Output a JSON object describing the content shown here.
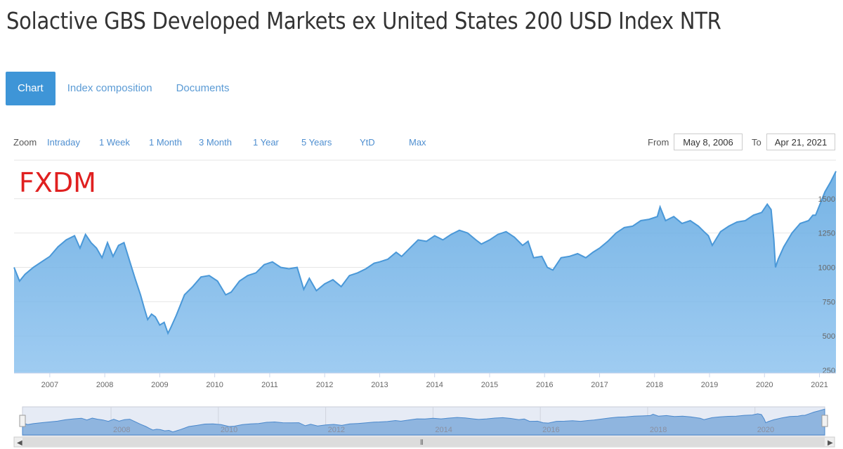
{
  "page": {
    "title": "Solactive GBS Developed Markets ex United States 200 USD Index NTR",
    "tabs": [
      {
        "label": "Chart",
        "active": true
      },
      {
        "label": "Index composition",
        "active": false
      },
      {
        "label": "Documents",
        "active": false
      }
    ],
    "zoom": {
      "label": "Zoom",
      "buttons": [
        "Intraday",
        "1 Week",
        "1 Month",
        "3 Month",
        "1 Year",
        "5 Years",
        "YtD",
        "Max"
      ]
    },
    "range": {
      "from_label": "From",
      "from_value": "May 8, 2006",
      "to_label": "To",
      "to_value": "Apr 21, 2021"
    },
    "watermark": "FXDM",
    "colors": {
      "accent": "#3e95d7",
      "line": "#4a98d8",
      "watermark": "#e02020"
    }
  },
  "chart_data": {
    "type": "area",
    "title": "",
    "xlabel": "",
    "ylabel": "",
    "xlim": [
      2006.35,
      2021.3
    ],
    "ylim": [
      230,
      1770
    ],
    "yticks": [
      250,
      500,
      750,
      1000,
      1250,
      1500
    ],
    "xticks": [
      2007,
      2008,
      2009,
      2010,
      2011,
      2012,
      2013,
      2014,
      2015,
      2016,
      2017,
      2018,
      2019,
      2020,
      2021
    ],
    "series": [
      {
        "x": [
          2006.35,
          2006.45,
          2006.55,
          2006.7,
          2006.85,
          2007.0,
          2007.15,
          2007.3,
          2007.45,
          2007.55,
          2007.65,
          2007.75,
          2007.85,
          2007.95,
          2008.05,
          2008.15,
          2008.25,
          2008.35,
          2008.45,
          2008.55,
          2008.65,
          2008.72,
          2008.78,
          2008.85,
          2008.92,
          2009.0,
          2009.08,
          2009.15,
          2009.2,
          2009.3,
          2009.45,
          2009.6,
          2009.75,
          2009.9,
          2010.05,
          2010.2,
          2010.3,
          2010.45,
          2010.6,
          2010.75,
          2010.9,
          2011.05,
          2011.2,
          2011.35,
          2011.5,
          2011.62,
          2011.72,
          2011.85,
          2012.0,
          2012.15,
          2012.3,
          2012.45,
          2012.6,
          2012.75,
          2012.9,
          2013.0,
          2013.15,
          2013.3,
          2013.4,
          2013.55,
          2013.7,
          2013.85,
          2014.0,
          2014.15,
          2014.3,
          2014.45,
          2014.6,
          2014.75,
          2014.85,
          2015.0,
          2015.15,
          2015.3,
          2015.45,
          2015.6,
          2015.7,
          2015.8,
          2015.95,
          2016.05,
          2016.15,
          2016.3,
          2016.45,
          2016.6,
          2016.75,
          2016.88,
          2017.0,
          2017.15,
          2017.3,
          2017.45,
          2017.6,
          2017.75,
          2017.9,
          2018.05,
          2018.1,
          2018.2,
          2018.35,
          2018.5,
          2018.65,
          2018.8,
          2018.9,
          2018.98,
          2019.05,
          2019.2,
          2019.35,
          2019.5,
          2019.65,
          2019.8,
          2019.95,
          2020.05,
          2020.12,
          2020.17,
          2020.2,
          2020.25,
          2020.35,
          2020.5,
          2020.65,
          2020.8,
          2020.88,
          2020.93,
          2021.0,
          2021.1,
          2021.2,
          2021.3
        ],
        "y": [
          1000,
          900,
          950,
          1000,
          1040,
          1080,
          1150,
          1200,
          1230,
          1140,
          1240,
          1180,
          1140,
          1070,
          1180,
          1080,
          1160,
          1180,
          1050,
          920,
          800,
          700,
          620,
          660,
          640,
          580,
          600,
          520,
          560,
          650,
          800,
          860,
          930,
          940,
          900,
          800,
          820,
          900,
          940,
          960,
          1020,
          1040,
          1000,
          990,
          1000,
          840,
          920,
          830,
          880,
          910,
          860,
          940,
          960,
          990,
          1030,
          1040,
          1060,
          1110,
          1080,
          1140,
          1200,
          1190,
          1230,
          1200,
          1240,
          1270,
          1250,
          1200,
          1170,
          1200,
          1240,
          1260,
          1220,
          1160,
          1190,
          1070,
          1080,
          1000,
          980,
          1070,
          1080,
          1100,
          1070,
          1110,
          1140,
          1190,
          1250,
          1290,
          1300,
          1340,
          1350,
          1370,
          1440,
          1340,
          1370,
          1320,
          1340,
          1300,
          1260,
          1230,
          1160,
          1260,
          1300,
          1330,
          1340,
          1380,
          1400,
          1460,
          1420,
          1200,
          1000,
          1060,
          1150,
          1250,
          1320,
          1340,
          1380,
          1380,
          1450,
          1550,
          1620,
          1700
        ]
      }
    ]
  }
}
